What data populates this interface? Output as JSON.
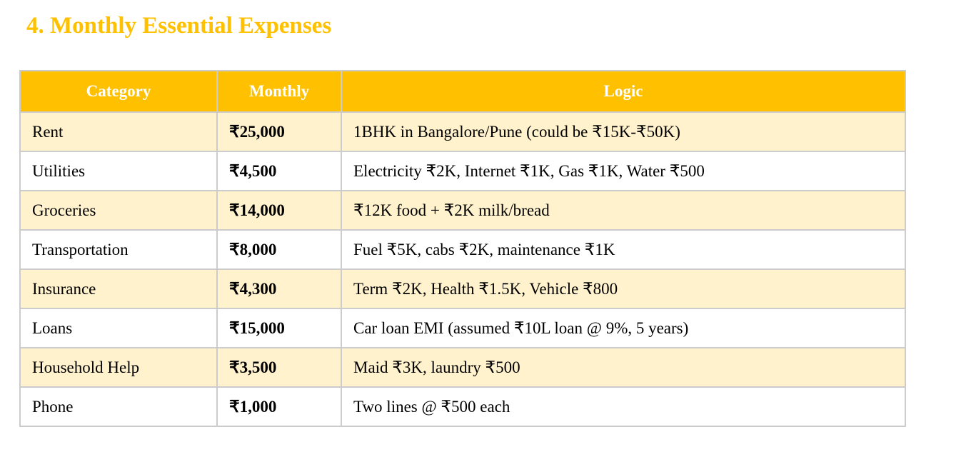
{
  "title": "4. Monthly Essential Expenses",
  "colors": {
    "accent": "#FFC000",
    "row_alt": "#FFF2CC",
    "border": "#CCCCCC"
  },
  "table": {
    "headers": [
      "Category",
      "Monthly",
      "Logic"
    ],
    "rows": [
      [
        "Rent",
        "₹25,000",
        "1BHK in Bangalore/Pune (could be ₹15K-₹50K)"
      ],
      [
        "Utilities",
        "₹4,500",
        "Electricity ₹2K, Internet ₹1K, Gas ₹1K, Water ₹500"
      ],
      [
        "Groceries",
        "₹14,000",
        "₹12K food + ₹2K milk/bread"
      ],
      [
        "Transportation",
        "₹8,000",
        "Fuel ₹5K, cabs ₹2K, maintenance ₹1K"
      ],
      [
        "Insurance",
        "₹4,300",
        "Term ₹2K, Health ₹1.5K, Vehicle ₹800"
      ],
      [
        "Loans",
        "₹15,000",
        "Car loan EMI (assumed ₹10L loan @ 9%, 5 years)"
      ],
      [
        "Household Help",
        "₹3,500",
        "Maid ₹3K, laundry ₹500"
      ],
      [
        "Phone",
        "₹1,000",
        "Two lines @ ₹500 each"
      ]
    ]
  }
}
